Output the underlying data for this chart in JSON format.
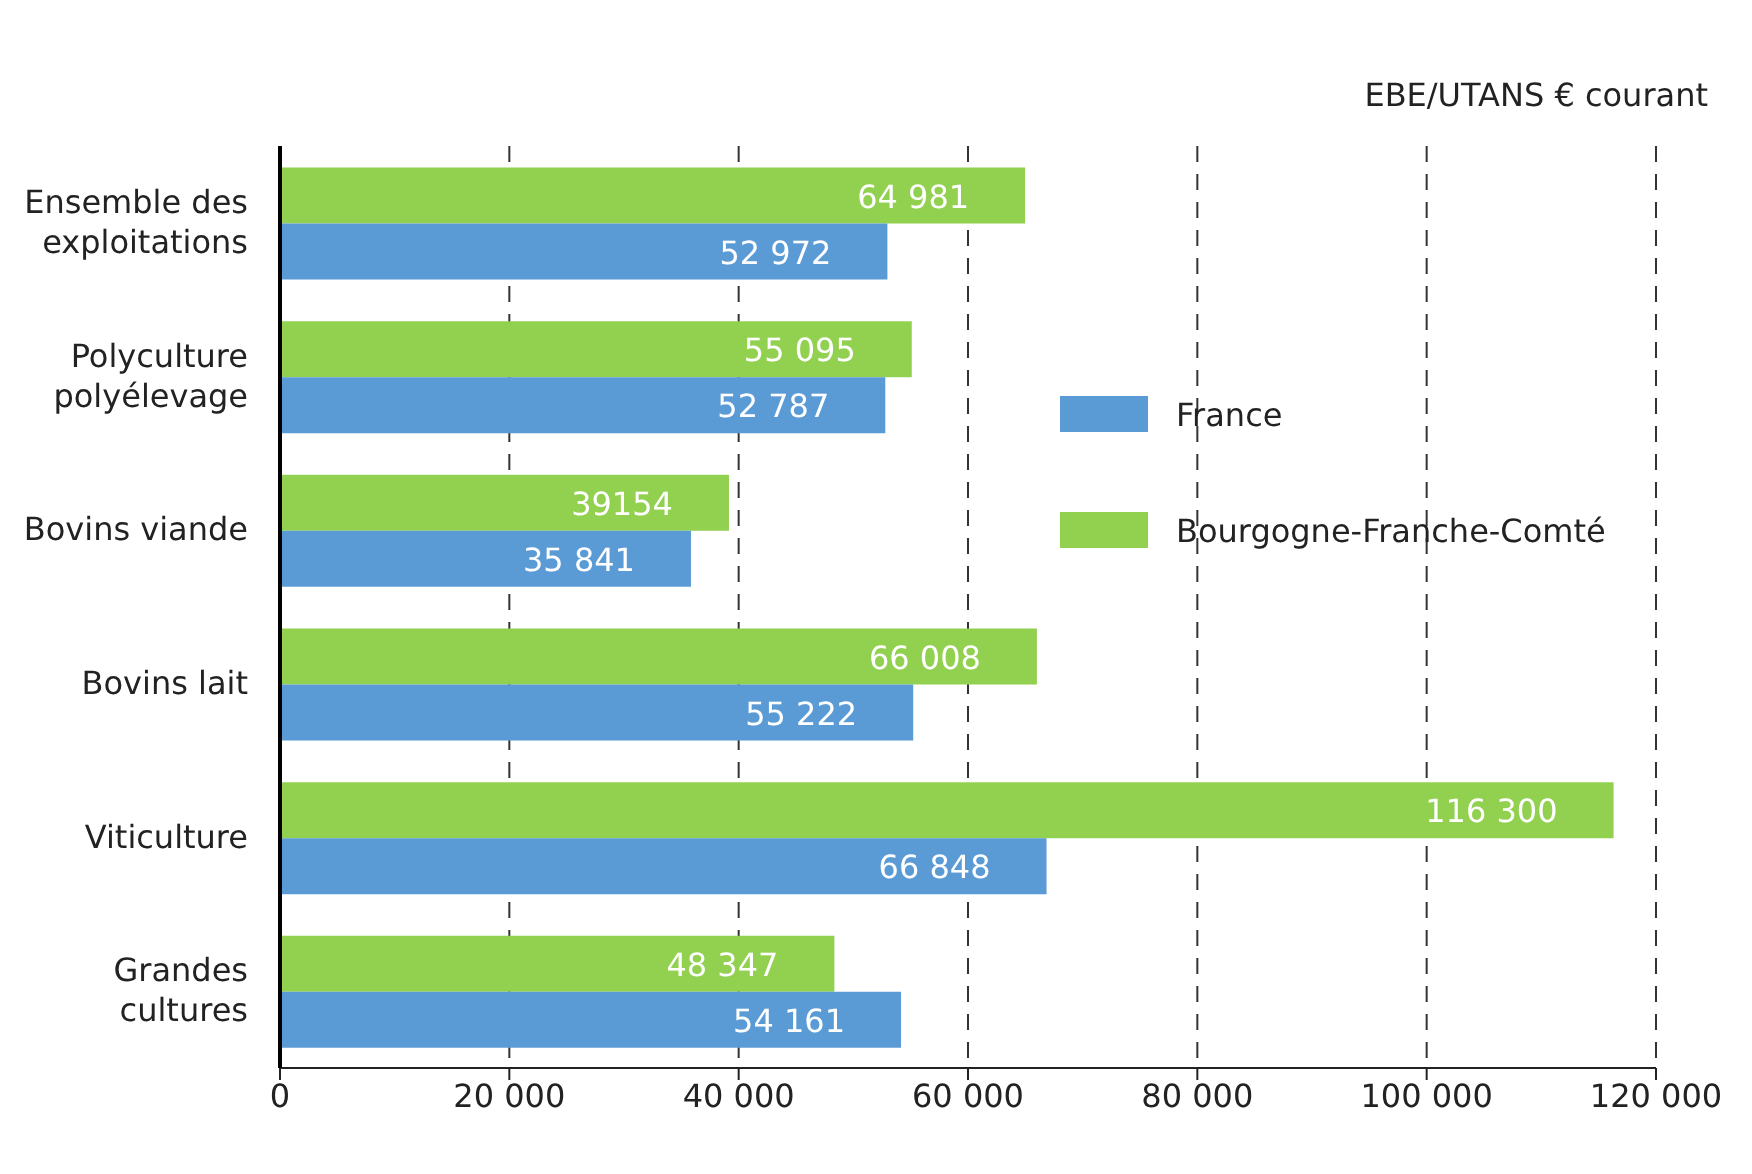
{
  "chart_data": {
    "type": "bar",
    "orientation": "horizontal",
    "annotations": [
      "EBE/UTANS € courant"
    ],
    "categories": [
      "Ensemble des exploitations",
      "Polyculture polyélevage",
      "Bovins viande",
      "Bovins lait",
      "Viticulture",
      "Grandes cultures"
    ],
    "series": [
      {
        "name": "France",
        "color": "#5b9bd5",
        "values": [
          52972,
          52787,
          35841,
          55222,
          66848,
          54161
        ],
        "value_labels": [
          "52 972",
          "52 787",
          "35 841",
          "55 222",
          "66 848",
          "54 161"
        ]
      },
      {
        "name": "Bourgogne-Franche-Comté",
        "color": "#92d050",
        "values": [
          64981,
          55095,
          39154,
          66008,
          116300,
          48347
        ],
        "value_labels": [
          "64 981",
          "55 095",
          "39154",
          "66 008",
          "116 300",
          "48 347"
        ]
      }
    ],
    "xlim": [
      0,
      120000
    ],
    "xticks": [
      0,
      {
        "value": 20000,
        "label": "20 000"
      },
      {
        "value": 40000,
        "label": "40 000"
      },
      {
        "value": 60000,
        "label": "60 000"
      },
      {
        "value": 80000,
        "label": "80 000"
      },
      {
        "value": 100000,
        "label": "100 000"
      },
      {
        "value": 120000,
        "label": "120 000"
      }
    ],
    "grid": "x",
    "legend": "right"
  }
}
